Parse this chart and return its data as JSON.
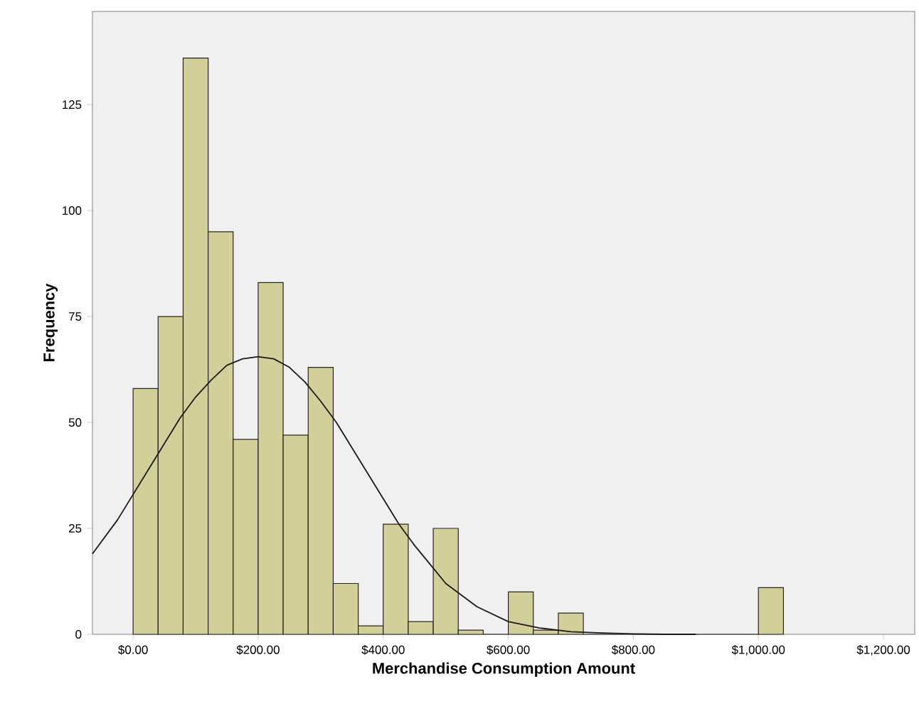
{
  "chart_data": {
    "type": "histogram",
    "xlabel": "Merchandise Consumption Amount",
    "ylabel": "Frequency",
    "bins": [
      0,
      40,
      80,
      120,
      160,
      200,
      240,
      280,
      320,
      360,
      400,
      440,
      480,
      520,
      560,
      600,
      640,
      680,
      720,
      760,
      800,
      840,
      880,
      920,
      960,
      1000,
      1040
    ],
    "values": [
      58,
      75,
      136,
      95,
      46,
      83,
      47,
      63,
      12,
      2,
      26,
      3,
      25,
      1,
      0,
      10,
      1,
      5,
      0,
      0,
      0,
      0,
      0,
      0,
      0,
      11
    ],
    "color": "#d3cf98",
    "series": [
      {
        "type": "line",
        "color": "#1a1a1a",
        "x": [
          -65,
          -25,
          0,
          25,
          50,
          75,
          100,
          125,
          150,
          175,
          200,
          225,
          250,
          275,
          300,
          325,
          350,
          375,
          400,
          425,
          450,
          475,
          500,
          550,
          600,
          650,
          700,
          750,
          800,
          850,
          900
        ],
        "values": [
          19,
          27,
          33,
          39,
          45,
          51,
          56,
          60,
          63.5,
          65,
          65.5,
          65,
          63,
          59.5,
          55,
          50,
          44,
          38,
          32,
          26,
          21,
          16.5,
          12,
          6.5,
          3,
          1.5,
          0.6,
          0.3,
          0.1,
          0,
          0
        ]
      }
    ],
    "xlim": [
      -65,
      1250
    ],
    "ylim": [
      0,
      147
    ],
    "xticks": [
      {
        "value": 0,
        "label": "$0.00"
      },
      {
        "value": 200,
        "label": "$200.00"
      },
      {
        "value": 400,
        "label": "$400.00"
      },
      {
        "value": 600,
        "label": "$600.00"
      },
      {
        "value": 800,
        "label": "$800.00"
      },
      {
        "value": 1000,
        "label": "$1,000.00"
      },
      {
        "value": 1200,
        "label": "$1,200.00"
      }
    ],
    "yticks": [
      0,
      25,
      50,
      75,
      100,
      125
    ]
  }
}
